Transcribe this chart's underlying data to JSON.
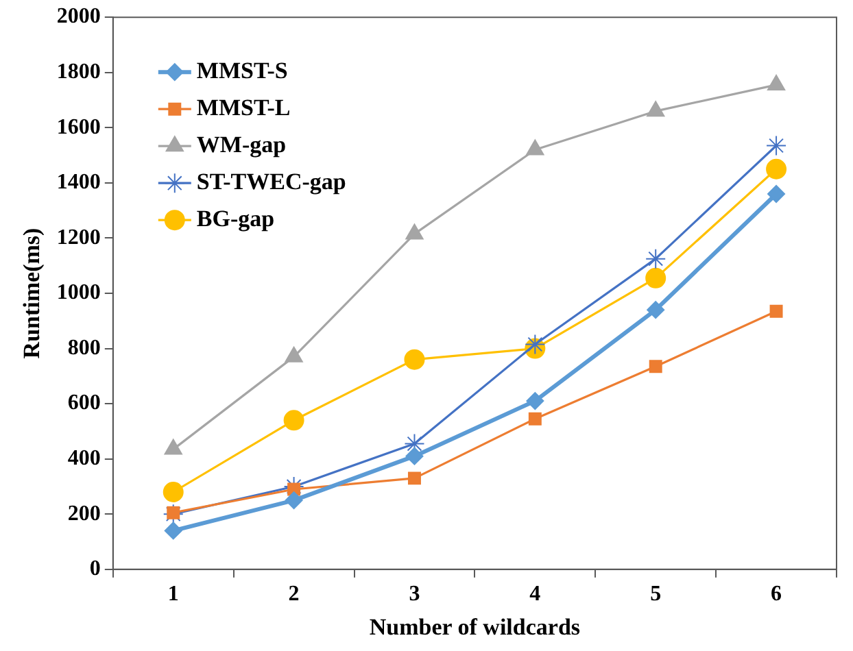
{
  "chart_data": {
    "type": "line",
    "xlabel": "Number of wildcards",
    "ylabel": "Runtime(ms)",
    "categories": [
      "1",
      "2",
      "3",
      "4",
      "5",
      "6"
    ],
    "ylim": [
      0,
      2000
    ],
    "yticks": [
      0,
      200,
      400,
      600,
      800,
      1000,
      1200,
      1400,
      1600,
      1800,
      2000
    ],
    "grid": false,
    "legend": "top left",
    "line_style": "solid",
    "series": [
      {
        "name": "MMST-S",
        "color": "#5b9bd5",
        "marker": "diamond",
        "values": [
          140,
          250,
          410,
          610,
          940,
          1360
        ]
      },
      {
        "name": "MMST-L",
        "color": "#ed7d31",
        "marker": "square",
        "values": [
          205,
          290,
          330,
          545,
          735,
          935
        ]
      },
      {
        "name": "WM-gap",
        "color": "#a5a5a5",
        "marker": "triangle",
        "values": [
          435,
          770,
          1215,
          1520,
          1660,
          1755
        ]
      },
      {
        "name": "ST-TWEC-gap",
        "color": "#4472c4",
        "marker": "cross",
        "values": [
          200,
          300,
          455,
          815,
          1125,
          1535
        ]
      },
      {
        "name": "BG-gap",
        "color": "#ffc000",
        "marker": "circle",
        "values": [
          280,
          540,
          760,
          800,
          1055,
          1450
        ]
      }
    ]
  }
}
